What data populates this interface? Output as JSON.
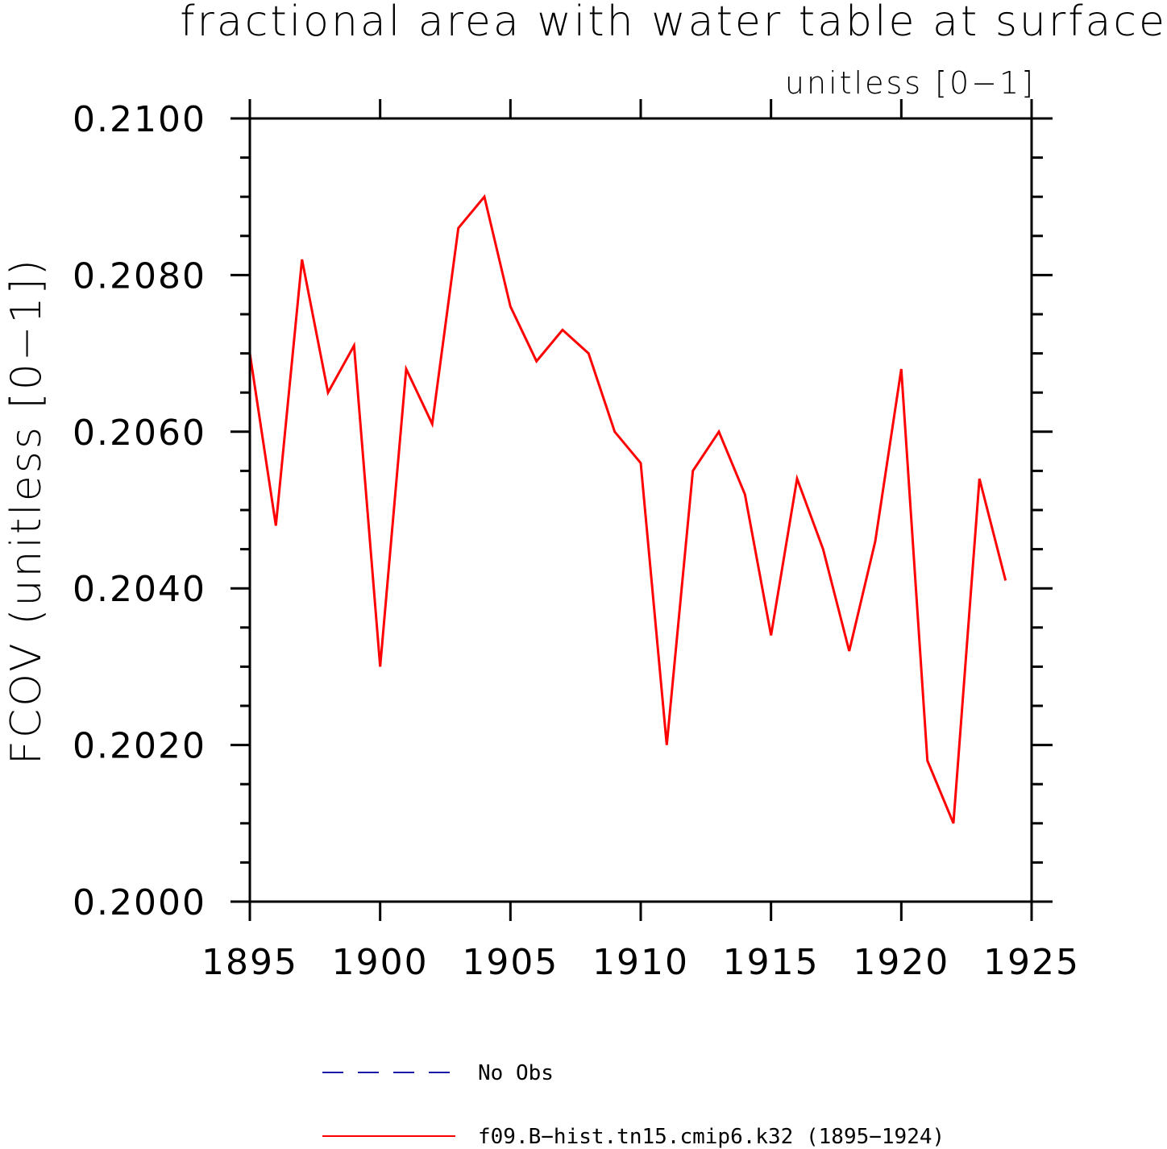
{
  "chart_data": {
    "type": "line",
    "title": "fractional area with water table at surface",
    "subtitle": "unitless [0−1]",
    "xlabel": "",
    "ylabel": "FCOV  (unitless [0−1])",
    "xlim": [
      1895,
      1925
    ],
    "ylim": [
      0.2,
      0.21
    ],
    "x_ticks": [
      "1895",
      "1900",
      "1905",
      "1910",
      "1915",
      "1920",
      "1925"
    ],
    "y_ticks": [
      "0.2000",
      "0.2020",
      "0.2040",
      "0.2060",
      "0.2080",
      "0.2100"
    ],
    "grid": false,
    "legend_position": "bottom",
    "series": [
      {
        "name": "No Obs",
        "color": "#1a1aa6",
        "dash": "dashed",
        "x": [],
        "values": []
      },
      {
        "name": "f09.B−hist.tn15.cmip6.k32 (1895−1924)",
        "color": "#ff0000",
        "dash": "solid",
        "x": [
          1895,
          1896,
          1897,
          1898,
          1899,
          1900,
          1901,
          1902,
          1903,
          1904,
          1905,
          1906,
          1907,
          1908,
          1909,
          1910,
          1911,
          1912,
          1913,
          1914,
          1915,
          1916,
          1917,
          1918,
          1919,
          1920,
          1921,
          1922,
          1923,
          1924
        ],
        "values": [
          0.207,
          0.2048,
          0.2082,
          0.2065,
          0.2071,
          0.203,
          0.2068,
          0.2061,
          0.2086,
          0.209,
          0.2076,
          0.2069,
          0.2073,
          0.207,
          0.206,
          0.2056,
          0.202,
          0.2055,
          0.206,
          0.2052,
          0.2034,
          0.2054,
          0.2045,
          0.2032,
          0.2046,
          0.2068,
          0.2018,
          0.201,
          0.2054,
          0.2041
        ]
      }
    ]
  }
}
